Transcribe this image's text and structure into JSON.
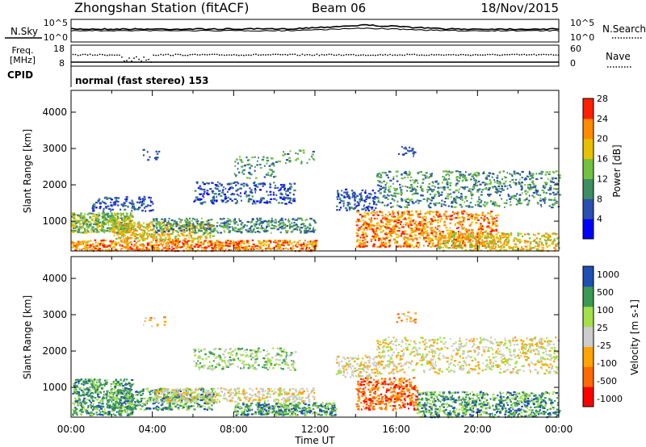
{
  "header": {
    "title": "Zhongshan Station (fitACF)",
    "beam": "Beam 06",
    "date": "18/Nov/2015"
  },
  "noise_panel": {
    "left_label": "N.Sky",
    "right_label": "N.Search",
    "left_ticks": [
      "10^5",
      "10^0"
    ],
    "right_ticks": [
      "10^5",
      "10^0"
    ]
  },
  "freq_panel": {
    "left_label_lines": [
      "Freq.",
      "[MHz]"
    ],
    "right_label": "Nave",
    "left_ticks": [
      "18",
      "8"
    ],
    "right_ticks": [
      "60",
      "0"
    ]
  },
  "cpid": {
    "label": "CPID",
    "text": "normal (fast stereo) 153"
  },
  "colors": {
    "power": [
      "#0000ff",
      "#2a4fb0",
      "#3e8e62",
      "#74c043",
      "#e6c100",
      "#ff8c00",
      "#ff2000"
    ],
    "velocity": [
      "#ff0000",
      "#ff6a00",
      "#ffa500",
      "#cccccc",
      "#a4e04a",
      "#3a9a52",
      "#1f4fb0"
    ]
  },
  "chart_data": [
    {
      "type": "heatmap",
      "ylabel": "Slant Range [km]",
      "xlabel": "",
      "colorbar_label": "Power [dB]",
      "colorbar_ticks": [
        "4",
        "8",
        "12",
        "16",
        "20",
        "24",
        "28"
      ],
      "yticks": [
        "1000",
        "2000",
        "3000",
        "4000"
      ],
      "ylim": [
        180,
        4600
      ],
      "xlim": [
        0,
        24
      ],
      "xticks": [
        "00:00",
        "04:00",
        "08:00",
        "12:00",
        "16:00",
        "20:00",
        "00:00"
      ]
    },
    {
      "type": "heatmap",
      "ylabel": "Slant Range [km]",
      "xlabel": "Time UT",
      "colorbar_label": "Velocity [m s-1]",
      "colorbar_ticks": [
        "1000",
        "500",
        "100",
        "25",
        "-25",
        "-100",
        "-500",
        "-1000"
      ],
      "yticks": [
        "1000",
        "2000",
        "3000",
        "4000"
      ],
      "ylim": [
        180,
        4600
      ],
      "xlim": [
        0,
        24
      ],
      "xticks": [
        "00:00",
        "04:00",
        "08:00",
        "12:00",
        "16:00",
        "20:00",
        "00:00"
      ]
    }
  ]
}
